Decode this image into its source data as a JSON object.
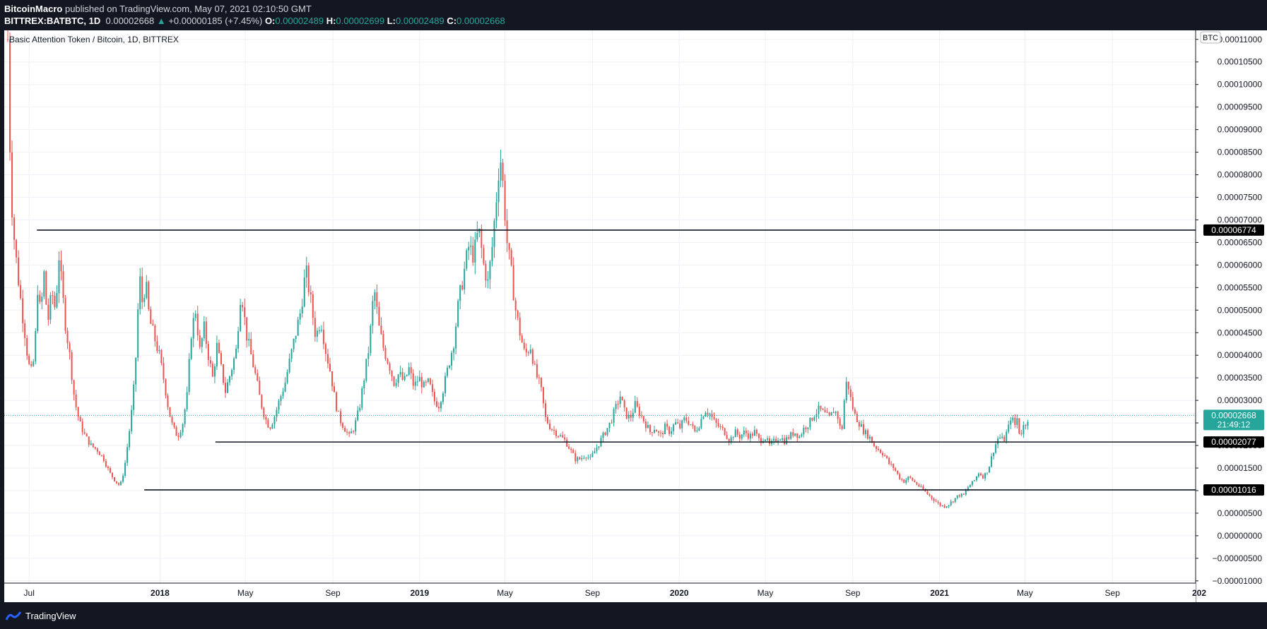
{
  "header": {
    "publisher": "BitcoinMacro",
    "published_text": "published on TradingView.com, May 07, 2021 02:10:50 GMT",
    "symbol": "BITTREX:BATBTC, 1D",
    "price": "0.00002668",
    "change_arrow": "▲",
    "change": "+0.00000185 (+7.45%)",
    "open_label": "O:",
    "open": "0.00002489",
    "high_label": "H:",
    "high": "0.00002699",
    "low_label": "L:",
    "low": "0.00002489",
    "close_label": "C:",
    "close": "0.00002668"
  },
  "footer": {
    "brand": "TradingView",
    "logo_icon": "tradingview-logo-icon"
  },
  "colors": {
    "up": "#26a69a",
    "down": "#ef5350",
    "line": "#131722",
    "grid": "#eef1f5",
    "background": "#ffffff",
    "price_tag": "#26a69a"
  },
  "chart_data": {
    "type": "candlestick",
    "title": "Basic Attention Token / Bitcoin, 1D, BITTREX",
    "currency_badge": "BTC",
    "ylim": [
      -1.05e-05,
      0.000112
    ],
    "y_ticks": [
      "0.00011000",
      "0.00010500",
      "0.00010000",
      "0.00009500",
      "0.00009000",
      "0.00008500",
      "0.00008000",
      "0.00007500",
      "0.00007000",
      "0.00006500",
      "0.00006000",
      "0.00005500",
      "0.00005000",
      "0.00004500",
      "0.00004000",
      "0.00003500",
      "0.00003000",
      "0.00002500",
      "0.00002000",
      "0.00001500",
      "0.00001000",
      "0.00000500",
      "0.00000000",
      "−0.00000500",
      "−0.00001000"
    ],
    "y_tick_values": [
      0.00011,
      0.000105,
      0.0001,
      9.5e-05,
      9e-05,
      8.5e-05,
      8e-05,
      7.5e-05,
      7e-05,
      6.5e-05,
      6e-05,
      5.5e-05,
      5e-05,
      4.5e-05,
      4e-05,
      3.5e-05,
      3e-05,
      2.5e-05,
      2e-05,
      1.5e-05,
      1e-05,
      5e-06,
      0,
      -5e-06,
      -1e-05
    ],
    "x_range": [
      "2017-06-01",
      "2022-01-01"
    ],
    "x_ticks": [
      {
        "label": "Jul",
        "date": "2017-07-01",
        "bold": false
      },
      {
        "label": "2018",
        "date": "2018-01-01",
        "bold": true
      },
      {
        "label": "May",
        "date": "2018-05-01",
        "bold": false
      },
      {
        "label": "Sep",
        "date": "2018-09-01",
        "bold": false
      },
      {
        "label": "2019",
        "date": "2019-01-01",
        "bold": true
      },
      {
        "label": "May",
        "date": "2019-05-01",
        "bold": false
      },
      {
        "label": "Sep",
        "date": "2019-09-01",
        "bold": false
      },
      {
        "label": "2020",
        "date": "2020-01-01",
        "bold": true
      },
      {
        "label": "May",
        "date": "2020-05-01",
        "bold": false
      },
      {
        "label": "Sep",
        "date": "2020-09-01",
        "bold": false
      },
      {
        "label": "2021",
        "date": "2021-01-01",
        "bold": true
      },
      {
        "label": "May",
        "date": "2021-05-01",
        "bold": false
      },
      {
        "label": "Sep",
        "date": "2021-09-01",
        "bold": false
      },
      {
        "label": "202",
        "date": "2022-01-01",
        "bold": true
      }
    ],
    "horizontal_lines": [
      {
        "value": 6.774e-05,
        "start": "2017-07-12",
        "label": "0.00006774"
      },
      {
        "value": 2.077e-05,
        "start": "2018-03-20",
        "label": "0.00002077"
      },
      {
        "value": 1.016e-05,
        "start": "2017-12-10",
        "label": "0.00001016"
      }
    ],
    "last_price": {
      "value": 2.668e-05,
      "label": "0.00002668",
      "countdown": "21:49:12"
    },
    "series_path": [
      [
        "2017-06-01",
        0.00011
      ],
      [
        "2017-06-03",
        9.5e-05
      ],
      [
        "2017-06-05",
        7.8e-05
      ],
      [
        "2017-06-08",
        7e-05
      ],
      [
        "2017-06-11",
        6.4e-05
      ],
      [
        "2017-06-15",
        5.8e-05
      ],
      [
        "2017-06-20",
        5.1e-05
      ],
      [
        "2017-06-25",
        4.5e-05
      ],
      [
        "2017-06-30",
        3.8e-05
      ],
      [
        "2017-07-05",
        3.6e-05
      ],
      [
        "2017-07-09",
        4.1e-05
      ],
      [
        "2017-07-13",
        5.5e-05
      ],
      [
        "2017-07-17",
        4.9e-05
      ],
      [
        "2017-07-22",
        5.8e-05
      ],
      [
        "2017-07-27",
        4.7e-05
      ],
      [
        "2017-08-02",
        5.4e-05
      ],
      [
        "2017-08-07",
        5e-05
      ],
      [
        "2017-08-12",
        6.2e-05
      ],
      [
        "2017-08-16",
        5.5e-05
      ],
      [
        "2017-08-21",
        4.7e-05
      ],
      [
        "2017-08-27",
        4e-05
      ],
      [
        "2017-09-03",
        3e-05
      ],
      [
        "2017-09-10",
        2.5e-05
      ],
      [
        "2017-09-18",
        2.2e-05
      ],
      [
        "2017-09-26",
        2e-05
      ],
      [
        "2017-10-05",
        1.9e-05
      ],
      [
        "2017-10-14",
        1.7e-05
      ],
      [
        "2017-10-22",
        1.4e-05
      ],
      [
        "2017-10-31",
        1.2e-05
      ],
      [
        "2017-11-06",
        1.1e-05
      ],
      [
        "2017-11-12",
        1.5e-05
      ],
      [
        "2017-11-18",
        2.2e-05
      ],
      [
        "2017-11-24",
        3e-05
      ],
      [
        "2017-11-29",
        4.2e-05
      ],
      [
        "2017-12-03",
        5.8e-05
      ],
      [
        "2017-12-07",
        5.2e-05
      ],
      [
        "2017-12-12",
        5.6e-05
      ],
      [
        "2017-12-17",
        4.8e-05
      ],
      [
        "2017-12-24",
        4.4e-05
      ],
      [
        "2017-12-31",
        4e-05
      ],
      [
        "2018-01-07",
        3.4e-05
      ],
      [
        "2018-01-13",
        2.8e-05
      ],
      [
        "2018-01-19",
        2.4e-05
      ],
      [
        "2018-01-26",
        2.2e-05
      ],
      [
        "2018-02-02",
        2.5e-05
      ],
      [
        "2018-02-08",
        3.1e-05
      ],
      [
        "2018-02-14",
        4.5e-05
      ],
      [
        "2018-02-20",
        5e-05
      ],
      [
        "2018-02-26",
        4.1e-05
      ],
      [
        "2018-03-04",
        4.6e-05
      ],
      [
        "2018-03-10",
        4e-05
      ],
      [
        "2018-03-16",
        3.5e-05
      ],
      [
        "2018-03-22",
        4.2e-05
      ],
      [
        "2018-03-28",
        3.7e-05
      ],
      [
        "2018-04-03",
        3.2e-05
      ],
      [
        "2018-04-10",
        3.6e-05
      ],
      [
        "2018-04-18",
        4.1e-05
      ],
      [
        "2018-04-25",
        5.5e-05
      ],
      [
        "2018-05-02",
        4.5e-05
      ],
      [
        "2018-05-09",
        4e-05
      ],
      [
        "2018-05-16",
        3.5e-05
      ],
      [
        "2018-05-22",
        3e-05
      ],
      [
        "2018-05-29",
        2.6e-05
      ],
      [
        "2018-06-04",
        2.4e-05
      ],
      [
        "2018-06-10",
        2.6e-05
      ],
      [
        "2018-06-18",
        3e-05
      ],
      [
        "2018-06-26",
        3.4e-05
      ],
      [
        "2018-07-04",
        4e-05
      ],
      [
        "2018-07-11",
        4.5e-05
      ],
      [
        "2018-07-18",
        5e-05
      ],
      [
        "2018-07-25",
        5.9e-05
      ],
      [
        "2018-08-01",
        5.2e-05
      ],
      [
        "2018-08-08",
        4.4e-05
      ],
      [
        "2018-08-15",
        4.8e-05
      ],
      [
        "2018-08-22",
        4.1e-05
      ],
      [
        "2018-08-29",
        3.6e-05
      ],
      [
        "2018-09-04",
        3e-05
      ],
      [
        "2018-09-10",
        2.6e-05
      ],
      [
        "2018-09-17",
        2.4e-05
      ],
      [
        "2018-09-24",
        2.2e-05
      ],
      [
        "2018-10-01",
        2.4e-05
      ],
      [
        "2018-10-08",
        2.8e-05
      ],
      [
        "2018-10-15",
        3.5e-05
      ],
      [
        "2018-10-22",
        4.2e-05
      ],
      [
        "2018-10-29",
        5.5e-05
      ],
      [
        "2018-11-05",
        4.6e-05
      ],
      [
        "2018-11-12",
        4.1e-05
      ],
      [
        "2018-11-19",
        3.8e-05
      ],
      [
        "2018-11-26",
        3.4e-05
      ],
      [
        "2018-12-03",
        3.6e-05
      ],
      [
        "2018-12-10",
        3.4e-05
      ],
      [
        "2018-12-17",
        3.7e-05
      ],
      [
        "2018-12-24",
        3.3e-05
      ],
      [
        "2018-12-31",
        3.5e-05
      ],
      [
        "2019-01-07",
        3.3e-05
      ],
      [
        "2019-01-14",
        3.4e-05
      ],
      [
        "2019-01-21",
        3e-05
      ],
      [
        "2019-01-28",
        2.9e-05
      ],
      [
        "2019-02-04",
        3.3e-05
      ],
      [
        "2019-02-11",
        3.8e-05
      ],
      [
        "2019-02-18",
        4.3e-05
      ],
      [
        "2019-02-25",
        5.2e-05
      ],
      [
        "2019-03-04",
        5.8e-05
      ],
      [
        "2019-03-11",
        6.4e-05
      ],
      [
        "2019-03-18",
        6.2e-05
      ],
      [
        "2019-03-25",
        6.8e-05
      ],
      [
        "2019-04-01",
        6e-05
      ],
      [
        "2019-04-07",
        5.6e-05
      ],
      [
        "2019-04-13",
        6.4e-05
      ],
      [
        "2019-04-19",
        7.5e-05
      ],
      [
        "2019-04-24",
        8.5e-05
      ],
      [
        "2019-04-28",
        7.8e-05
      ],
      [
        "2019-05-04",
        6.5e-05
      ],
      [
        "2019-05-10",
        5.8e-05
      ],
      [
        "2019-05-16",
        5e-05
      ],
      [
        "2019-05-22",
        4.5e-05
      ],
      [
        "2019-05-29",
        4e-05
      ],
      [
        "2019-06-06",
        4.2e-05
      ],
      [
        "2019-06-13",
        3.6e-05
      ],
      [
        "2019-06-20",
        3.3e-05
      ],
      [
        "2019-06-27",
        2.6e-05
      ],
      [
        "2019-07-04",
        2.4e-05
      ],
      [
        "2019-07-11",
        2.3e-05
      ],
      [
        "2019-07-18",
        2.2e-05
      ],
      [
        "2019-07-25",
        2.1e-05
      ],
      [
        "2019-08-01",
        1.9e-05
      ],
      [
        "2019-08-08",
        1.7e-05
      ],
      [
        "2019-08-15",
        1.7e-05
      ],
      [
        "2019-08-22",
        1.8e-05
      ],
      [
        "2019-08-29",
        1.7e-05
      ],
      [
        "2019-09-05",
        1.9e-05
      ],
      [
        "2019-09-12",
        2.1e-05
      ],
      [
        "2019-09-19",
        2.3e-05
      ],
      [
        "2019-09-26",
        2.5e-05
      ],
      [
        "2019-10-03",
        2.8e-05
      ],
      [
        "2019-10-10",
        3.1e-05
      ],
      [
        "2019-10-17",
        2.7e-05
      ],
      [
        "2019-10-24",
        2.6e-05
      ],
      [
        "2019-10-31",
        2.9e-05
      ],
      [
        "2019-11-07",
        2.7e-05
      ],
      [
        "2019-11-14",
        2.5e-05
      ],
      [
        "2019-11-21",
        2.3e-05
      ],
      [
        "2019-11-28",
        2.4e-05
      ],
      [
        "2019-12-05",
        2.2e-05
      ],
      [
        "2019-12-12",
        2.4e-05
      ],
      [
        "2019-12-19",
        2.3e-05
      ],
      [
        "2019-12-26",
        2.5e-05
      ],
      [
        "2020-01-02",
        2.4e-05
      ],
      [
        "2020-01-09",
        2.6e-05
      ],
      [
        "2020-01-16",
        2.5e-05
      ],
      [
        "2020-01-23",
        2.3e-05
      ],
      [
        "2020-01-30",
        2.5e-05
      ],
      [
        "2020-02-06",
        2.8e-05
      ],
      [
        "2020-02-13",
        2.7e-05
      ],
      [
        "2020-02-20",
        2.5e-05
      ],
      [
        "2020-02-27",
        2.4e-05
      ],
      [
        "2020-03-05",
        2.3e-05
      ],
      [
        "2020-03-12",
        2.1e-05
      ],
      [
        "2020-03-19",
        2.3e-05
      ],
      [
        "2020-03-26",
        2.2e-05
      ],
      [
        "2020-04-02",
        2.3e-05
      ],
      [
        "2020-04-09",
        2.2e-05
      ],
      [
        "2020-04-16",
        2.3e-05
      ],
      [
        "2020-04-23",
        2.1e-05
      ],
      [
        "2020-04-30",
        2.2e-05
      ],
      [
        "2020-05-07",
        2e-05
      ],
      [
        "2020-05-14",
        2.1e-05
      ],
      [
        "2020-05-21",
        2.2e-05
      ],
      [
        "2020-05-28",
        2.1e-05
      ],
      [
        "2020-06-04",
        2.2e-05
      ],
      [
        "2020-06-11",
        2.3e-05
      ],
      [
        "2020-06-18",
        2.2e-05
      ],
      [
        "2020-06-25",
        2.4e-05
      ],
      [
        "2020-07-02",
        2.5e-05
      ],
      [
        "2020-07-09",
        2.7e-05
      ],
      [
        "2020-07-16",
        2.8e-05
      ],
      [
        "2020-07-23",
        2.7e-05
      ],
      [
        "2020-07-30",
        2.6e-05
      ],
      [
        "2020-08-06",
        2.8e-05
      ],
      [
        "2020-08-12",
        2.6e-05
      ],
      [
        "2020-08-16",
        2.2e-05
      ],
      [
        "2020-08-20",
        3e-05
      ],
      [
        "2020-08-24",
        3.5e-05
      ],
      [
        "2020-08-28",
        3.1e-05
      ],
      [
        "2020-09-03",
        2.7e-05
      ],
      [
        "2020-09-10",
        2.5e-05
      ],
      [
        "2020-09-17",
        2.3e-05
      ],
      [
        "2020-09-24",
        2.2e-05
      ],
      [
        "2020-10-01",
        2e-05
      ],
      [
        "2020-10-08",
        1.9e-05
      ],
      [
        "2020-10-15",
        1.8e-05
      ],
      [
        "2020-10-22",
        1.6e-05
      ],
      [
        "2020-10-29",
        1.5e-05
      ],
      [
        "2020-11-05",
        1.3e-05
      ],
      [
        "2020-11-12",
        1.2e-05
      ],
      [
        "2020-11-19",
        1.3e-05
      ],
      [
        "2020-11-26",
        1.2e-05
      ],
      [
        "2020-12-03",
        1.1e-05
      ],
      [
        "2020-12-10",
        1e-05
      ],
      [
        "2020-12-17",
        9e-06
      ],
      [
        "2020-12-24",
        8e-06
      ],
      [
        "2020-12-31",
        7e-06
      ],
      [
        "2021-01-07",
        6.5e-06
      ],
      [
        "2021-01-14",
        7e-06
      ],
      [
        "2021-01-21",
        8e-06
      ],
      [
        "2021-01-28",
        9e-06
      ],
      [
        "2021-02-04",
        9e-06
      ],
      [
        "2021-02-11",
        1.1e-05
      ],
      [
        "2021-02-18",
        1.2e-05
      ],
      [
        "2021-02-25",
        1.4e-05
      ],
      [
        "2021-03-04",
        1.3e-05
      ],
      [
        "2021-03-11",
        1.5e-05
      ],
      [
        "2021-03-18",
        1.9e-05
      ],
      [
        "2021-03-25",
        2.2e-05
      ],
      [
        "2021-04-01",
        2.1e-05
      ],
      [
        "2021-04-08",
        2.4e-05
      ],
      [
        "2021-04-12",
        2.7e-05
      ],
      [
        "2021-04-16",
        2.4e-05
      ],
      [
        "2021-04-20",
        2.6e-05
      ],
      [
        "2021-04-24",
        2.2e-05
      ],
      [
        "2021-04-28",
        2.4e-05
      ],
      [
        "2021-05-02",
        2.5e-05
      ],
      [
        "2021-05-07",
        2.67e-05
      ]
    ]
  }
}
